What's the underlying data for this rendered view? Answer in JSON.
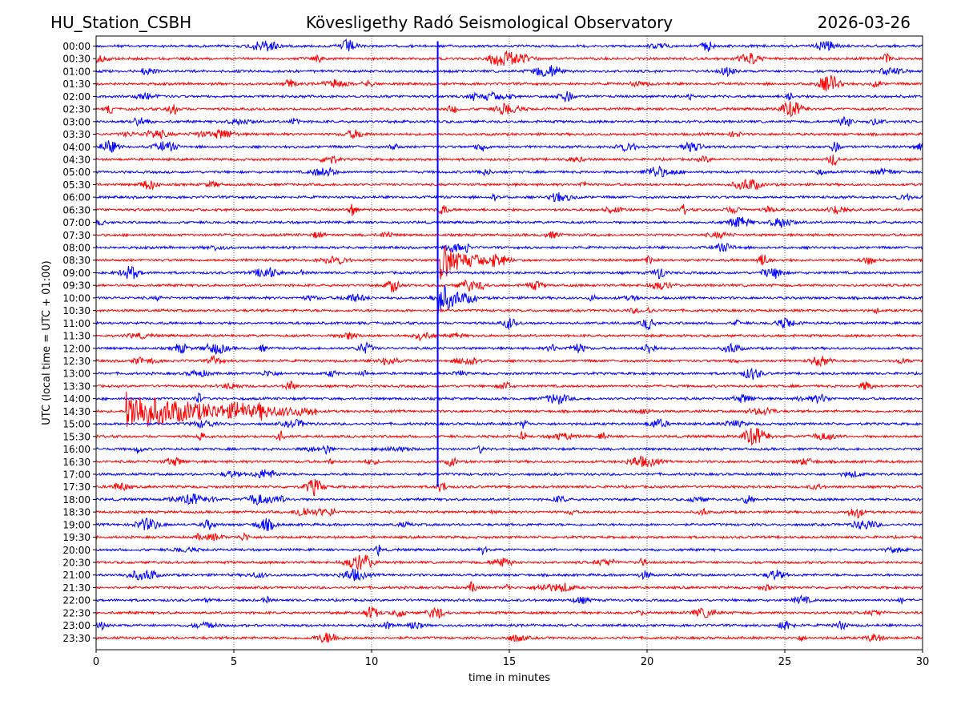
{
  "header": {
    "station": "HU_Station_CSBH",
    "title": "Kövesligethy Radó Seismological Observatory",
    "date": "2026-03-26"
  },
  "chart_data": {
    "type": "line",
    "xlabel": "time in minutes",
    "ylabel": "UTC (local time = UTC + 01:00)",
    "xlim": [
      0,
      30
    ],
    "xticks": [
      0,
      5,
      10,
      15,
      20,
      25,
      30
    ],
    "grid": "vertical dotted at x ticks",
    "row_labels": [
      "00:00",
      "00:30",
      "01:00",
      "01:30",
      "02:00",
      "02:30",
      "03:00",
      "03:30",
      "04:00",
      "04:30",
      "05:00",
      "05:30",
      "06:00",
      "06:30",
      "07:00",
      "07:30",
      "08:00",
      "08:30",
      "09:00",
      "09:30",
      "10:00",
      "10:30",
      "11:00",
      "11:30",
      "12:00",
      "12:30",
      "13:00",
      "13:30",
      "14:00",
      "14:30",
      "15:00",
      "15:30",
      "16:00",
      "16:30",
      "17:00",
      "17:30",
      "18:00",
      "18:30",
      "19:00",
      "19:30",
      "20:00",
      "20:30",
      "21:00",
      "21:30",
      "22:00",
      "22:30",
      "23:00",
      "23:30"
    ],
    "trace_colors": [
      "#0000ff",
      "#ff0000"
    ],
    "events": [
      {
        "row": "14:30",
        "start_min": 1.1,
        "end_min": 8.0
      },
      {
        "row": "10:00",
        "start_min": 12.4,
        "end_min": 13.8
      },
      {
        "row": "08:30",
        "start_min": 12.5,
        "end_min": 14.5
      }
    ],
    "vertical_marker_min": 12.4
  }
}
